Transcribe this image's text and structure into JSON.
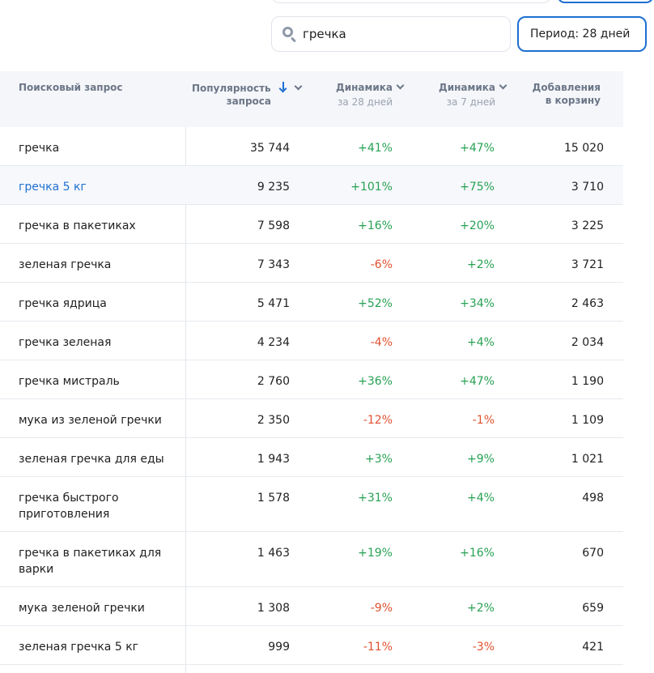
{
  "search": {
    "value": "гречка"
  },
  "period": {
    "label": "Период: 28 дней"
  },
  "table": {
    "headers": {
      "query": "Поисковый запрос",
      "popularity": [
        "Популярность",
        "запроса"
      ],
      "dyn28": {
        "title": "Динамика",
        "sub": "за 28 дней"
      },
      "dyn7": {
        "title": "Динамика",
        "sub": "за 7 дней"
      },
      "cart": [
        "Добавления",
        "в корзину"
      ]
    },
    "rows": [
      {
        "query": "гречка",
        "popularity": "35 744",
        "dyn28": "+41%",
        "dyn7": "+47%",
        "cart": "15 020"
      },
      {
        "query": "гречка 5 кг",
        "popularity": "9 235",
        "dyn28": "+101%",
        "dyn7": "+75%",
        "cart": "3 710"
      },
      {
        "query": "гречка в пакетиках",
        "popularity": "7 598",
        "dyn28": "+16%",
        "dyn7": "+20%",
        "cart": "3 225"
      },
      {
        "query": "зеленая гречка",
        "popularity": "7 343",
        "dyn28": "-6%",
        "dyn7": "+2%",
        "cart": "3 721"
      },
      {
        "query": "гречка ядрица",
        "popularity": "5 471",
        "dyn28": "+52%",
        "dyn7": "+34%",
        "cart": "2 463"
      },
      {
        "query": "гречка зеленая",
        "popularity": "4 234",
        "dyn28": "-4%",
        "dyn7": "+4%",
        "cart": "2 034"
      },
      {
        "query": "гречка мистраль",
        "popularity": "2 760",
        "dyn28": "+36%",
        "dyn7": "+47%",
        "cart": "1 190"
      },
      {
        "query": "мука из зеленой гречки",
        "popularity": "2 350",
        "dyn28": "-12%",
        "dyn7": "-1%",
        "cart": "1 109"
      },
      {
        "query": "зеленая гречка для еды",
        "popularity": "1 943",
        "dyn28": "+3%",
        "dyn7": "+9%",
        "cart": "1 021"
      },
      {
        "query": "гречка быстрого приготовления",
        "popularity": "1 578",
        "dyn28": "+31%",
        "dyn7": "+4%",
        "cart": "498"
      },
      {
        "query": "гречка в пакетиках для варки",
        "popularity": "1 463",
        "dyn28": "+19%",
        "dyn7": "+16%",
        "cart": "670"
      },
      {
        "query": "мука зеленой гречки",
        "popularity": "1 308",
        "dyn28": "-9%",
        "dyn7": "+2%",
        "cart": "659"
      },
      {
        "query": "зеленая гречка 5 кг",
        "popularity": "999",
        "dyn28": "-11%",
        "dyn7": "-3%",
        "cart": "421"
      }
    ]
  },
  "colors": {
    "accent": "#1f6fd1",
    "positive": "#27a153",
    "negative": "#e0512f"
  }
}
